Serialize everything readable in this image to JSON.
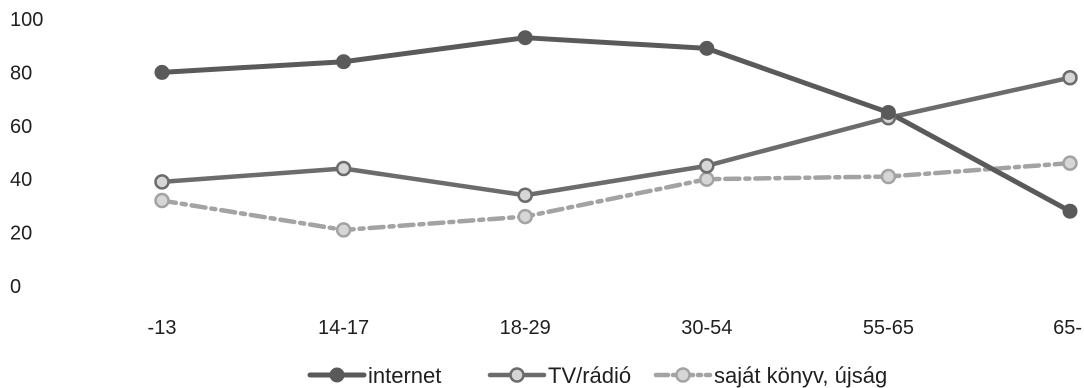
{
  "chart_data": {
    "type": "line",
    "title": "",
    "xlabel": "",
    "ylabel": "",
    "categories": [
      "-13",
      "14-17",
      "18-29",
      "30-54",
      "55-65",
      "65-"
    ],
    "ylim": [
      0,
      100
    ],
    "y_ticks": [
      "0",
      "20",
      "40",
      "60",
      "80",
      "100"
    ],
    "grid": false,
    "legend_position": "bottom",
    "series": [
      {
        "name": "internet",
        "values": [
          80,
          84,
          93,
          89,
          65,
          28
        ],
        "color": "#5a5a5a",
        "style": "solid"
      },
      {
        "name": "TV/rádió",
        "values": [
          39,
          44,
          34,
          45,
          63,
          78
        ],
        "color": "#6c6c6c",
        "style": "solid"
      },
      {
        "name": "saját könyv, újság",
        "values": [
          32,
          21,
          26,
          40,
          41,
          46
        ],
        "color": "#a3a3a3",
        "style": "dashed"
      }
    ]
  }
}
